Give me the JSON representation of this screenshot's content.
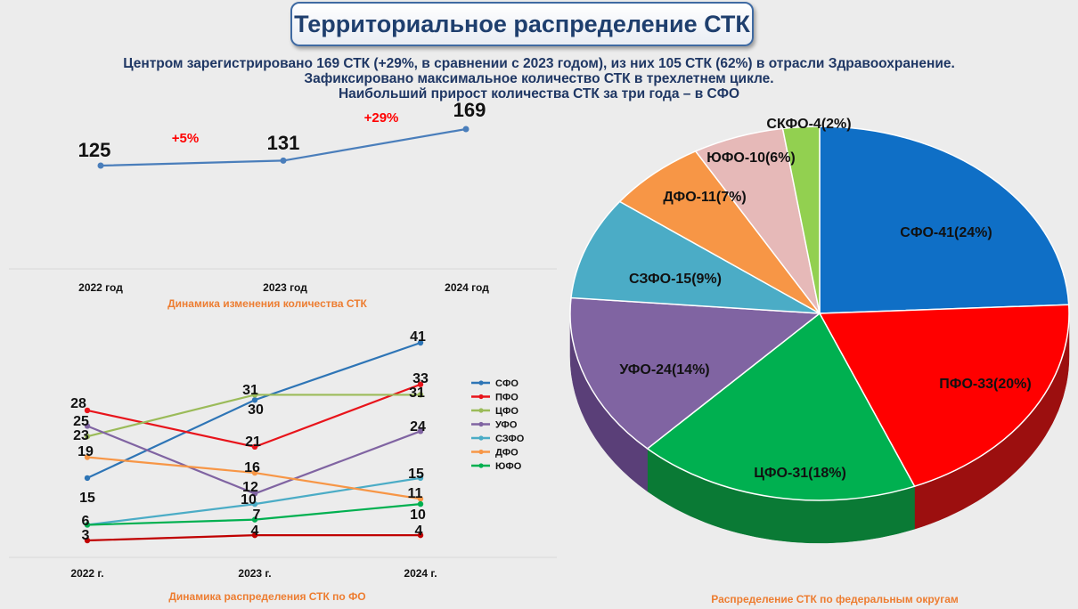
{
  "header": {
    "title": "Территориальное распределение СТК",
    "subtitle_lines": [
      "Центром зарегистрировано 169 СТК (+29%, в сравнении с 2023 годом), из них 105 СТК (62%) в отрасли Здравоохранение.",
      "Зафиксировано максимальное количество СТК в трехлетнем цикле.",
      "Наибольший прирост количества СТК за три года – в СФО"
    ]
  },
  "chart_data": [
    {
      "type": "line",
      "caption": "Динамика изменения количества СТК",
      "categories": [
        "2022 год",
        "2023 год",
        "2024 год"
      ],
      "values": [
        125,
        131,
        169
      ],
      "value_labels": [
        "125",
        "131",
        "169"
      ],
      "change_labels": [
        "+5%",
        "+29%"
      ],
      "color": "#4a7ebb",
      "change_color": "#ff0000",
      "grid": false
    },
    {
      "type": "line",
      "caption": "Динамика распределения  СТК по ФО",
      "categories": [
        "2022 г.",
        "2023 г.",
        "2024 г."
      ],
      "legend_position": "right",
      "grid": false,
      "series": [
        {
          "name": "СФО",
          "values": [
            15,
            30,
            41
          ],
          "color": "#2e75b6"
        },
        {
          "name": "ПФО",
          "values": [
            28,
            21,
            33
          ],
          "color": "#e8141b"
        },
        {
          "name": "ЦФО",
          "values": [
            23,
            31,
            31
          ],
          "color": "#9bbb59"
        },
        {
          "name": "УФО",
          "values": [
            25,
            12,
            24
          ],
          "color": "#8064a2"
        },
        {
          "name": "СЗФО",
          "values": [
            6,
            10,
            15
          ],
          "color": "#4bacc6"
        },
        {
          "name": "ДФО",
          "values": [
            19,
            16,
            11
          ],
          "color": "#f79646"
        },
        {
          "name": "ЮФО",
          "values": [
            6,
            7,
            10
          ],
          "color": "#00b050"
        },
        {
          "values": [
            3,
            4,
            4
          ],
          "color": "#c00000"
        }
      ]
    },
    {
      "type": "pie",
      "caption": "Распределение СТК по федеральным округам",
      "slices": [
        {
          "label": "СФО-41(24%)",
          "value": 41,
          "color": "#0f6fc6",
          "side": "#0a4f8f"
        },
        {
          "label": "ПФО-33(20%)",
          "value": 33,
          "color": "#ff0000",
          "side": "#9c0f0f"
        },
        {
          "label": "ЦФО-31(18%)",
          "value": 31,
          "color": "#00b050",
          "side": "#0a7a35"
        },
        {
          "label": "УФО-24(14%)",
          "value": 24,
          "color": "#8064a2",
          "side": "#5a3f78"
        },
        {
          "label": "СЗФО-15(9%)",
          "value": 15,
          "color": "#4bacc6",
          "side": "#2f7f96"
        },
        {
          "label": "ДФО-11(7%)",
          "value": 11,
          "color": "#f79646",
          "side": "#b86a2a"
        },
        {
          "label": "ЮФО-10(6%)",
          "value": 10,
          "color": "#e6b9b8",
          "side": "#a88584"
        },
        {
          "label": "СКФО-4(2%)",
          "value": 4,
          "color": "#92d050",
          "side": "#5f9430"
        }
      ]
    }
  ]
}
